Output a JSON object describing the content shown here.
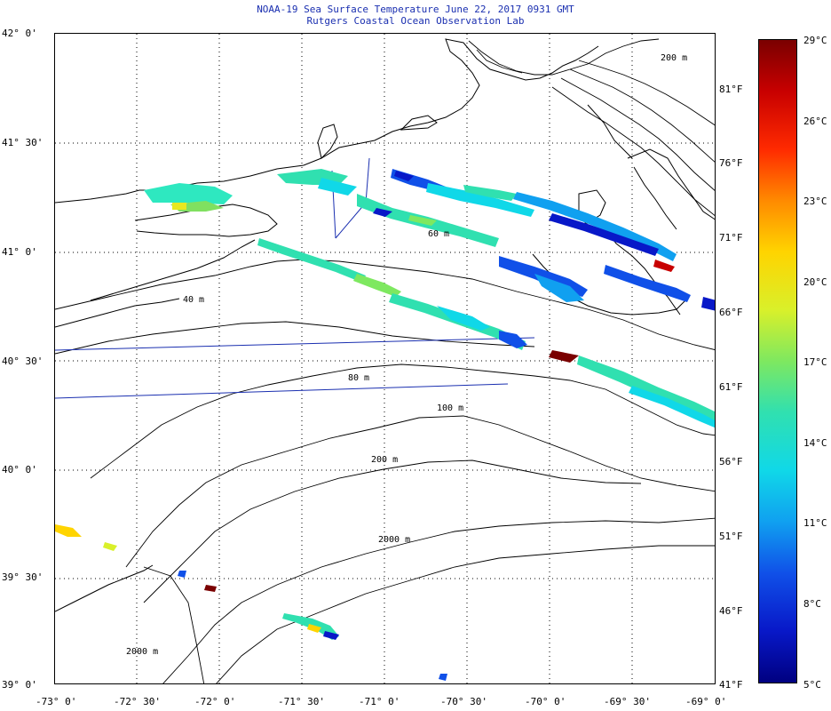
{
  "header": {
    "title": "NOAA-19 Sea Surface Temperature June 22, 2017 0931 GMT",
    "subtitle": "Rutgers Coastal Ocean Observation Lab"
  },
  "map": {
    "lat_labels": [
      "42° 0'",
      "41° 30'",
      "41° 0'",
      "40° 30'",
      "40° 0'",
      "39° 30'",
      "39° 0'"
    ],
    "lon_labels": [
      "-73° 0'",
      "-72° 30'",
      "-72° 0'",
      "-71° 30'",
      "-71° 0'",
      "-70° 30'",
      "-70° 0'",
      "-69° 30'",
      "-69° 0'"
    ],
    "fahrenheit_labels": [
      "81°F",
      "76°F",
      "71°F",
      "66°F",
      "61°F",
      "56°F",
      "51°F",
      "46°F",
      "41°F"
    ],
    "depth_labels": [
      "40 m",
      "60 m",
      "80 m",
      "100 m",
      "200 m",
      "2000 m",
      "200 m",
      "2000 m"
    ]
  },
  "colorbar": {
    "celsius_labels": [
      "29°C",
      "26°C",
      "23°C",
      "20°C",
      "17°C",
      "14°C",
      "11°C",
      "8°C",
      "5°C"
    ],
    "colors": [
      "#7a0000",
      "#c80000",
      "#ff2a00",
      "#ff8a00",
      "#ffd400",
      "#d9f02a",
      "#7ee860",
      "#30e0b0",
      "#10d8e8",
      "#10a0f0",
      "#1050e8",
      "#0818c8",
      "#000080"
    ]
  }
}
